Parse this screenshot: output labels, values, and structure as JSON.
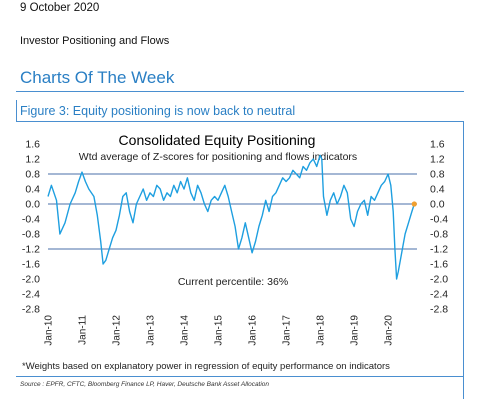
{
  "header": {
    "date": "9 October 2020",
    "section": "Investor Positioning and Flows",
    "page_heading": "Charts Of The Week"
  },
  "figure": {
    "label": "Figure 3: Equity positioning is now back to neutral",
    "footnote": "*Weights based on explanatory power in regression of equity performance on indicators",
    "source": "Source : EPFR, CFTC, Bloomberg Finance LP, Haver, Deutsche Bank Asset Allocation"
  },
  "colors": {
    "accent": "#2a7fc4",
    "series": "#1e9fe0",
    "reference_lines": "#4a6fa8",
    "marker": "#f0a030"
  },
  "chart_data": {
    "type": "line",
    "title": "Consolidated Equity Positioning",
    "subtitle": "Wtd average of Z-scores for positioning and flows indicators",
    "annotation": "Current percentile: 36%",
    "xlabel": "",
    "ylabel": "",
    "ylim": [
      -2.8,
      1.6
    ],
    "yticks": [
      "1.6",
      "1.2",
      "0.8",
      "0.4",
      "0.0",
      "-0.4",
      "-0.8",
      "-1.2",
      "-1.6",
      "-2.0",
      "-2.4",
      "-2.8"
    ],
    "xlim": [
      2010.0,
      2020.85
    ],
    "xticks": [
      "Jan-10",
      "Jan-11",
      "Jan-12",
      "Jan-13",
      "Jan-14",
      "Jan-15",
      "Jan-16",
      "Jan-17",
      "Jan-18",
      "Jan-19",
      "Jan-20"
    ],
    "reference_lines": [
      0.8,
      0.0,
      -1.2
    ],
    "legend": "none",
    "grid": false,
    "series": [
      {
        "x": [
          2010.0,
          2010.1,
          2010.25,
          2010.35,
          2010.5,
          2010.65,
          2010.8,
          2010.9,
          2011.0,
          2011.1,
          2011.2,
          2011.35,
          2011.45,
          2011.55,
          2011.62,
          2011.7,
          2011.8,
          2011.9,
          2012.0,
          2012.1,
          2012.2,
          2012.3,
          2012.4,
          2012.5,
          2012.6,
          2012.7,
          2012.8,
          2012.9,
          2013.0,
          2013.1,
          2013.2,
          2013.3,
          2013.4,
          2013.5,
          2013.6,
          2013.7,
          2013.8,
          2013.9,
          2014.0,
          2014.1,
          2014.2,
          2014.3,
          2014.4,
          2014.5,
          2014.6,
          2014.7,
          2014.8,
          2014.9,
          2015.0,
          2015.1,
          2015.2,
          2015.3,
          2015.4,
          2015.5,
          2015.6,
          2015.7,
          2015.8,
          2015.9,
          2016.0,
          2016.1,
          2016.2,
          2016.3,
          2016.4,
          2016.5,
          2016.6,
          2016.7,
          2016.8,
          2016.9,
          2017.0,
          2017.1,
          2017.2,
          2017.3,
          2017.4,
          2017.5,
          2017.6,
          2017.7,
          2017.8,
          2017.9,
          2018.0,
          2018.05,
          2018.1,
          2018.2,
          2018.3,
          2018.4,
          2018.5,
          2018.6,
          2018.7,
          2018.8,
          2018.9,
          2019.0,
          2019.1,
          2019.2,
          2019.3,
          2019.4,
          2019.5,
          2019.6,
          2019.7,
          2019.8,
          2019.9,
          2020.0,
          2020.08,
          2020.15,
          2020.2,
          2020.25,
          2020.3,
          2020.4,
          2020.5,
          2020.6,
          2020.7,
          2020.77
        ],
        "y": [
          0.2,
          0.5,
          0.1,
          -0.8,
          -0.5,
          0.0,
          0.3,
          0.6,
          0.85,
          0.6,
          0.4,
          0.2,
          -0.3,
          -1.0,
          -1.6,
          -1.5,
          -1.2,
          -0.9,
          -0.7,
          -0.3,
          0.2,
          0.3,
          -0.2,
          -0.5,
          0.0,
          0.2,
          0.4,
          0.1,
          0.3,
          0.2,
          0.5,
          0.4,
          0.1,
          0.3,
          0.2,
          0.5,
          0.3,
          0.6,
          0.4,
          0.7,
          0.3,
          0.1,
          0.5,
          0.3,
          0.0,
          -0.2,
          0.1,
          0.2,
          0.1,
          0.3,
          0.5,
          0.2,
          -0.2,
          -0.6,
          -1.2,
          -0.9,
          -0.5,
          -0.9,
          -1.3,
          -1.0,
          -0.6,
          -0.3,
          0.1,
          -0.2,
          0.2,
          0.3,
          0.5,
          0.7,
          0.6,
          0.7,
          0.9,
          0.8,
          0.7,
          1.0,
          0.9,
          1.1,
          1.2,
          1.0,
          1.3,
          1.2,
          0.2,
          -0.3,
          0.1,
          0.3,
          0.0,
          0.2,
          0.5,
          0.3,
          -0.4,
          -0.6,
          -0.2,
          0.0,
          0.1,
          -0.3,
          0.2,
          0.1,
          0.3,
          0.5,
          0.6,
          0.8,
          0.5,
          -0.2,
          -1.2,
          -2.0,
          -1.8,
          -1.3,
          -0.8,
          -0.5,
          -0.2,
          0.0
        ]
      }
    ],
    "current_marker": {
      "x": 2020.77,
      "y": 0.0
    }
  }
}
